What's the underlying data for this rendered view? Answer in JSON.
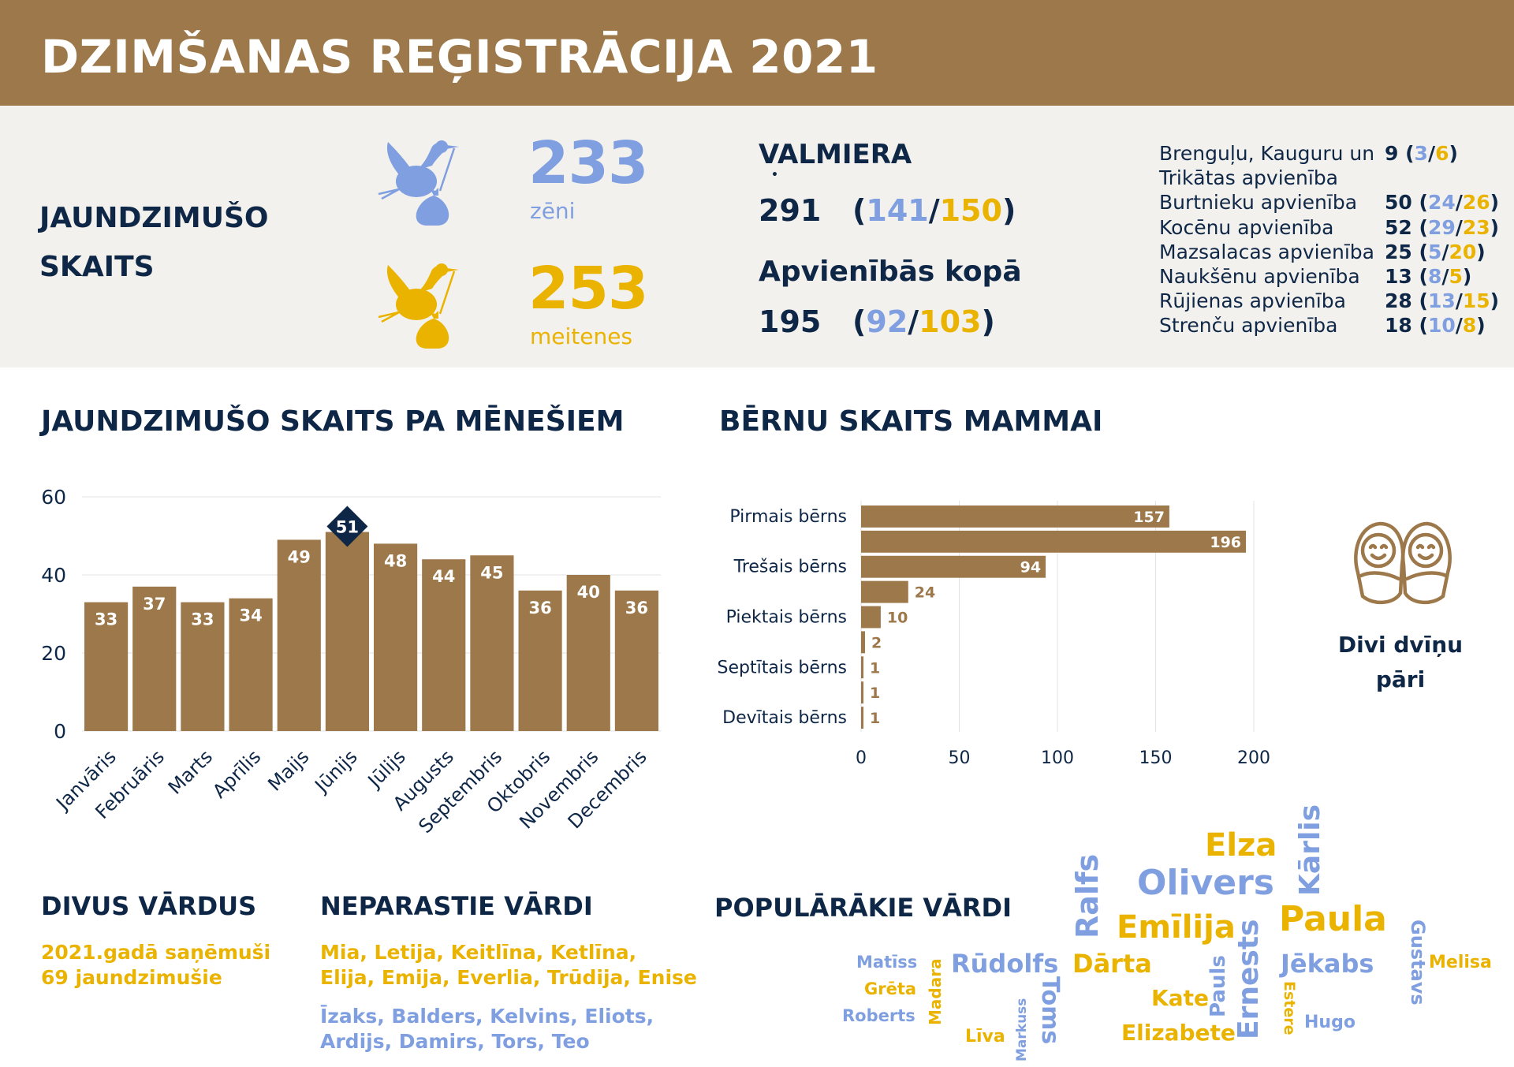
{
  "title": "DZIMŠANAS REĢISTRĀCIJA 2021",
  "colors": {
    "brown": "#9d784a",
    "navy": "#0f2747",
    "blue": "#7f9fe0",
    "gold": "#eab300"
  },
  "summary": {
    "heading_line1": "JAUNDZIMUŠO",
    "heading_line2": "SKAITS",
    "boys": {
      "value": "233",
      "label": "zēni",
      "icon": "stork-icon"
    },
    "girls": {
      "value": "253",
      "label": "meitenes",
      "icon": "stork-icon"
    }
  },
  "valmiera": {
    "heading": "VALMIERA",
    "total": "291",
    "boys": "141",
    "girls": "150",
    "sub_heading": "Apvienībās kopā",
    "sub_total": "195",
    "sub_boys": "92",
    "sub_girls": "103"
  },
  "municipalities": [
    {
      "name": "Brenguļu, Kauguru un",
      "name2": "Trikātas apvienība",
      "total": "9",
      "boys": "3",
      "girls": "6"
    },
    {
      "name": "Burtnieku apvienība",
      "total": "50",
      "boys": "24",
      "girls": "26"
    },
    {
      "name": "Kocēnu apvienība",
      "total": "52",
      "boys": "29",
      "girls": "23"
    },
    {
      "name": "Mazsalacas apvienība",
      "total": "25",
      "boys": "5",
      "girls": "20"
    },
    {
      "name": "Naukšēnu apvienība",
      "total": "13",
      "boys": "8",
      "girls": "5"
    },
    {
      "name": "Rūjienas apvienība",
      "total": "28",
      "boys": "13",
      "girls": "15"
    },
    {
      "name": "Strenču apvienība",
      "total": "18",
      "boys": "10",
      "girls": "8"
    }
  ],
  "monthly_title": "JAUNDZIMUŠO SKAITS PA MĒNEŠIEM",
  "children_title": "BĒRNU SKAITS MAMMAI",
  "chart_data": [
    {
      "type": "bar",
      "categories": [
        "Janvāris",
        "Februāris",
        "Marts",
        "Aprīlis",
        "Maijs",
        "Jūnijs",
        "Jūlijs",
        "Augusts",
        "Septembris",
        "Oktobris",
        "Novembris",
        "Decembris"
      ],
      "values": [
        33,
        37,
        33,
        34,
        49,
        51,
        48,
        44,
        45,
        36,
        40,
        36
      ],
      "highlight_index": 5,
      "yticks": [
        0,
        20,
        40,
        60
      ],
      "ylim": [
        0,
        60
      ],
      "grid": true
    },
    {
      "type": "bar",
      "orientation": "horizontal",
      "categories": [
        "Pirmais bērns",
        "",
        "Trešais bērns",
        "",
        "Piektais bērns",
        "",
        "Septītais bērns",
        "",
        "Devītais bērns"
      ],
      "values": [
        157,
        196,
        94,
        24,
        10,
        2,
        1,
        1,
        1
      ],
      "xticks": [
        0,
        50,
        100,
        150,
        200
      ],
      "xlim": [
        0,
        200
      ],
      "grid": true
    }
  ],
  "twins": {
    "label_line1": "Divi dvīņu",
    "label_line2": "pāri",
    "icon": "twins-baby-icon"
  },
  "two_names": {
    "heading": "DIVUS VĀRDUS",
    "line1": "2021.gadā saņēmuši",
    "line2": "69 jaundzimušie"
  },
  "unusual_names": {
    "heading": "NEPARASTIE VĀRDI",
    "girls_line1": "Mia, Letija, Keitlīna, Ketlīna,",
    "girls_line2": "Elija, Emija, Everlia, Trūdija, Enise",
    "boys_line1": "Īzaks, Balders, Kelvins, Eliots,",
    "boys_line2": "Ardijs, Damirs, Tors, Teo"
  },
  "popular_names": {
    "heading": "POPULĀRĀKIE VĀRDI",
    "words": {
      "elza": "Elza",
      "olivers": "Olivers",
      "karlis": "Kārlis",
      "ralfs": "Ralfs",
      "emilija": "Emīlija",
      "paula": "Paula",
      "ernests": "Ernests",
      "gustavs": "Gustavs",
      "melisa": "Melisa",
      "matiss": "Matīss",
      "greta": "Grēta",
      "roberts": "Roberts",
      "madara": "Madara",
      "rudolfs": "Rūdolfs",
      "darta": "Dārta",
      "jekabs": "Jēkabs",
      "markuss": "Markuss",
      "toms": "Toms",
      "pauls": "Pauls",
      "kate": "Kate",
      "estere": "Estere",
      "hugo": "Hugo",
      "liva": "Līva",
      "elizabete": "Elizabete"
    }
  }
}
